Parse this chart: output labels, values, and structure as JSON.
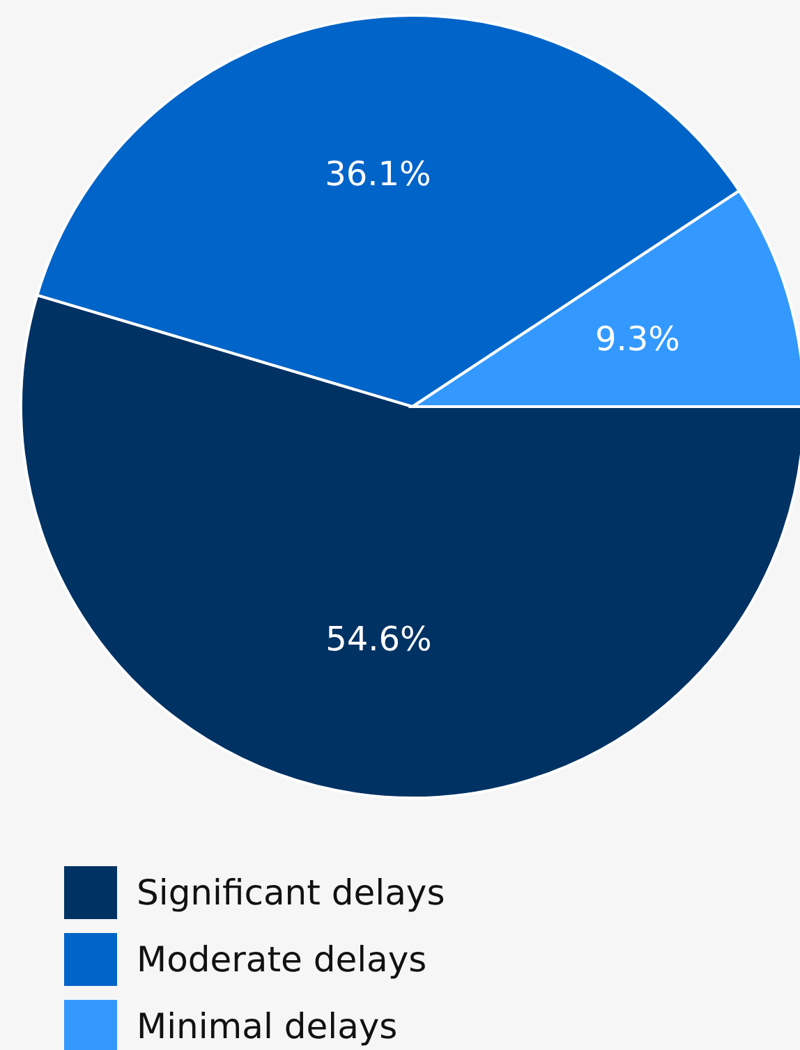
{
  "chart_data": {
    "type": "pie",
    "categories": [
      "Significant delays",
      "Moderate delays",
      "Minimal delays"
    ],
    "values": [
      54.6,
      36.1,
      9.3
    ],
    "colors": [
      "#003263",
      "#0064c8",
      "#3399ff"
    ],
    "value_labels": [
      "54.6%",
      "36.1%",
      "9.3%"
    ],
    "legend": "bottom"
  }
}
